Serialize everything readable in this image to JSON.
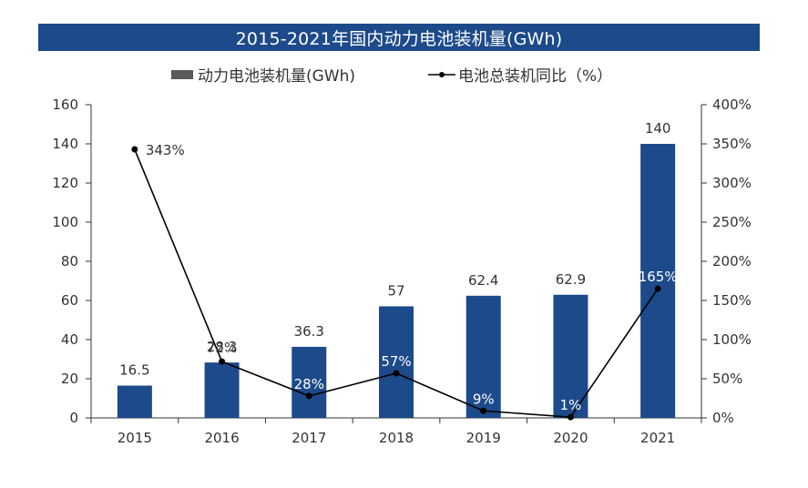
{
  "chart_data": {
    "type": "bar",
    "title": "2015-2021年国内动力电池装机量(GWh)",
    "categories": [
      "2015",
      "2016",
      "2017",
      "2018",
      "2019",
      "2020",
      "2021"
    ],
    "series": [
      {
        "name": "动力电池装机量(GWh)",
        "kind": "bar",
        "axis": "left",
        "color": "#1d4a8a",
        "values": [
          16.5,
          28.3,
          36.3,
          57,
          62.4,
          62.9,
          140
        ],
        "labels": [
          "16.5",
          "28.3",
          "36.3",
          "57",
          "62.4",
          "62.9",
          "140"
        ]
      },
      {
        "name": "电池总装机同比（%）",
        "kind": "line",
        "axis": "right",
        "color": "#000000",
        "values": [
          343,
          72,
          28,
          57,
          9,
          1,
          165
        ],
        "labels": [
          "343%",
          "72%",
          "28%",
          "57%",
          "9%",
          "1%",
          "165%"
        ]
      }
    ],
    "y_left": {
      "min": 0,
      "max": 160,
      "ticks": [
        0,
        20,
        40,
        60,
        80,
        100,
        120,
        140,
        160
      ]
    },
    "y_right": {
      "min": 0,
      "max": 400,
      "ticks": [
        "0%",
        "50%",
        "100%",
        "150%",
        "200%",
        "250%",
        "300%",
        "350%",
        "400%"
      ]
    },
    "legend_position": "top-center"
  }
}
